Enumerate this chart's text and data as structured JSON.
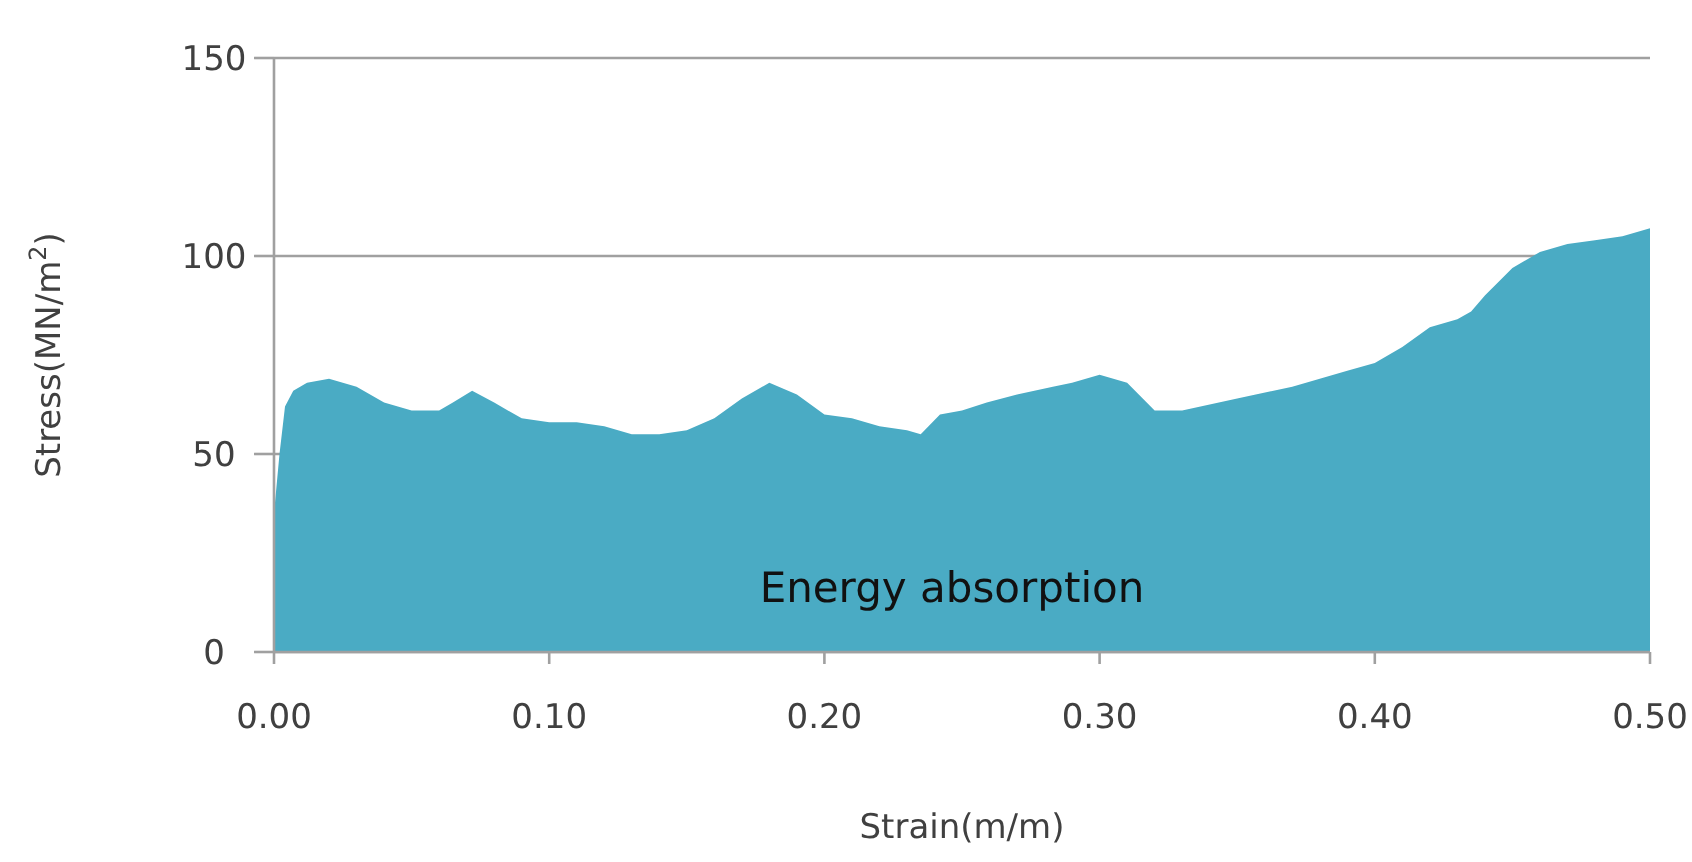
{
  "chart_data": {
    "type": "area",
    "xlabel": "Strain(m/m)",
    "ylabel": "Stress(MN/m$^{2}$)",
    "annotations": [
      "Energy absorption"
    ],
    "x": [
      0,
      0.002,
      0.004,
      0.007,
      0.012,
      0.02,
      0.03,
      0.04,
      0.05,
      0.06,
      0.065,
      0.072,
      0.08,
      0.09,
      0.1,
      0.11,
      0.12,
      0.13,
      0.14,
      0.15,
      0.16,
      0.17,
      0.18,
      0.19,
      0.2,
      0.21,
      0.22,
      0.23,
      0.235,
      0.242,
      0.25,
      0.259,
      0.27,
      0.283,
      0.29,
      0.3,
      0.31,
      0.32,
      0.33,
      0.35,
      0.37,
      0.38,
      0.39,
      0.4,
      0.41,
      0.42,
      0.43,
      0.435,
      0.44,
      0.45,
      0.46,
      0.47,
      0.48,
      0.49,
      0.5
    ],
    "series": [
      {
        "color": "#4aabc4",
        "values": [
          35,
          50,
          62,
          66,
          68,
          69,
          67,
          63,
          61,
          61,
          63,
          66,
          63,
          59,
          58,
          58,
          57,
          55,
          55,
          56,
          59,
          64,
          68,
          65,
          60,
          59,
          57,
          56,
          55,
          60,
          61,
          63,
          65,
          67,
          68,
          70,
          68,
          61,
          61,
          64,
          67,
          69,
          71,
          73,
          77,
          82,
          84,
          86,
          90,
          97,
          101,
          103,
          104,
          105,
          107
        ]
      }
    ],
    "xlim": [
      0,
      0.5
    ],
    "xticks": [
      {
        "value": 0,
        "label": "0.00"
      },
      {
        "value": 0.1,
        "label": "0.10"
      },
      {
        "value": 0.2,
        "label": "0.20"
      },
      {
        "value": 0.3,
        "label": "0.30"
      },
      {
        "value": 0.4,
        "label": "0.40"
      },
      {
        "value": 0.5,
        "label": "0.50"
      }
    ],
    "ylim": [
      0,
      150
    ],
    "yticks": [
      0,
      50,
      100,
      150
    ],
    "grid": "y"
  }
}
